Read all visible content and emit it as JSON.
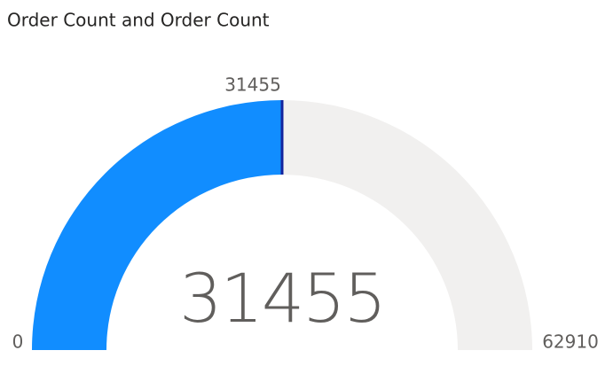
{
  "chart_data": {
    "type": "gauge",
    "title": "Order Count and Order Count",
    "value": 31455,
    "target": 31455,
    "ylim": [
      0,
      62910
    ],
    "color": "#118DFF",
    "track_color": "#F1F0EF",
    "target_color": "#12239E"
  }
}
